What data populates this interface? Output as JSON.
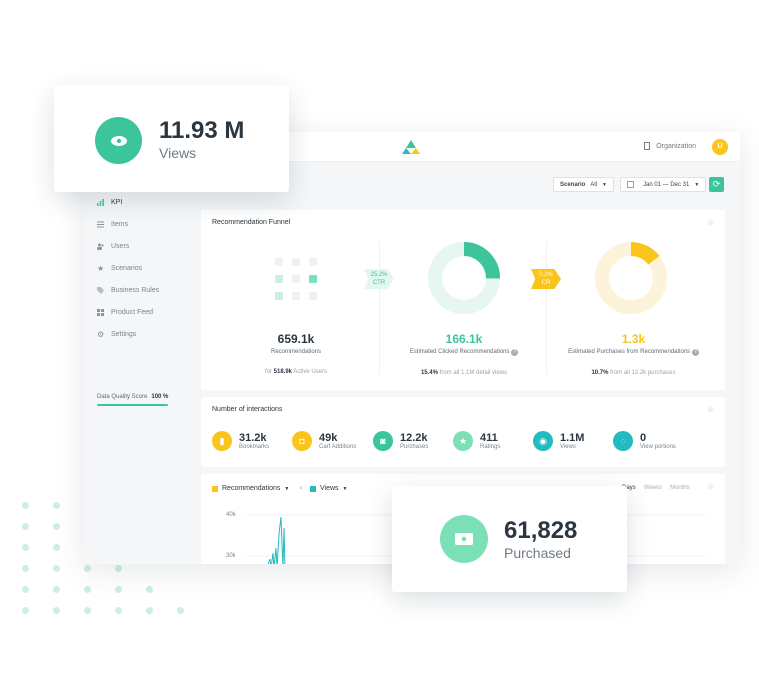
{
  "topbar": {
    "org_label": "Organization",
    "user_initial": "U"
  },
  "sidebar": {
    "items": [
      {
        "label": "KPI",
        "icon": "bar-chart-icon"
      },
      {
        "label": "Items",
        "icon": "list-icon"
      },
      {
        "label": "Users",
        "icon": "users-icon"
      },
      {
        "label": "Scenarios",
        "icon": "star-icon"
      },
      {
        "label": "Business Rules",
        "icon": "tag-icon"
      },
      {
        "label": "Product Feed",
        "icon": "grid-icon"
      },
      {
        "label": "Settings",
        "icon": "gear-icon"
      }
    ],
    "data_quality_label": "Data Quality Score",
    "data_quality_value": "100 %",
    "data_quality_fraction": 1.0
  },
  "filters": {
    "scenario_label": "Scenario",
    "scenario_value": "All",
    "date_range": "Jan 01 — Dec 31"
  },
  "funnel": {
    "title": "Recommendation Funnel",
    "recommendations": {
      "value": "659.1k",
      "label": "Recommendations",
      "foot_prefix": "for",
      "foot_value": "518.9k",
      "foot_suffix": "Active Users"
    },
    "ctr": {
      "value": "25.2%",
      "label": "CTR"
    },
    "clicked": {
      "value": "166.1k",
      "label": "Estimated Clicked Recommendations",
      "foot_value": "15.4%",
      "foot_suffix": "from all 1.1M detail views",
      "fraction": 0.252
    },
    "cr": {
      "value": "0.2%",
      "label": "CR"
    },
    "purchases": {
      "value": "1.3k",
      "label": "Estimated Purchases from Recommendations",
      "foot_value": "10.7%",
      "foot_suffix": "from all 12.2k purchases",
      "fraction": 0.107
    }
  },
  "interactions": {
    "title": "Number of interactions",
    "items": [
      {
        "value": "31.2k",
        "label": "Bookmarks",
        "color": "#f9c51c",
        "icon": "bookmark-icon"
      },
      {
        "value": "49k",
        "label": "Cart Additions",
        "color": "#f9c51c",
        "icon": "cart-icon"
      },
      {
        "value": "12.2k",
        "label": "Purchases",
        "color": "#3cc49b",
        "icon": "bag-icon"
      },
      {
        "value": "411",
        "label": "Ratings",
        "color": "#7ce0b6",
        "icon": "star-icon"
      },
      {
        "value": "1.1M",
        "label": "Views",
        "color": "#22bbc0",
        "icon": "eye-icon"
      },
      {
        "value": "0",
        "label": "View portions",
        "color": "#22bbc0",
        "icon": "spinner-icon"
      }
    ]
  },
  "chart_card": {
    "series_a": "Recommendations",
    "series_b": "Views",
    "ranges": [
      "Days",
      "Weeks",
      "Months"
    ],
    "selected_range": "Days"
  },
  "chart_data": {
    "type": "line",
    "ylim": [
      20000,
      45000
    ],
    "y_ticks": [
      "40k",
      "30k"
    ],
    "series": [
      {
        "name": "Views"
      }
    ]
  },
  "floating_views": {
    "value": "11.93 M",
    "label": "Views",
    "icon": "eye-icon"
  },
  "floating_purchased": {
    "value": "61,828",
    "label": "Purchased",
    "icon": "money-icon"
  },
  "colors": {
    "green": "#3cc49b",
    "mint": "#7ce0b6",
    "yellow": "#f9c51c",
    "cyan": "#22bbc0"
  }
}
